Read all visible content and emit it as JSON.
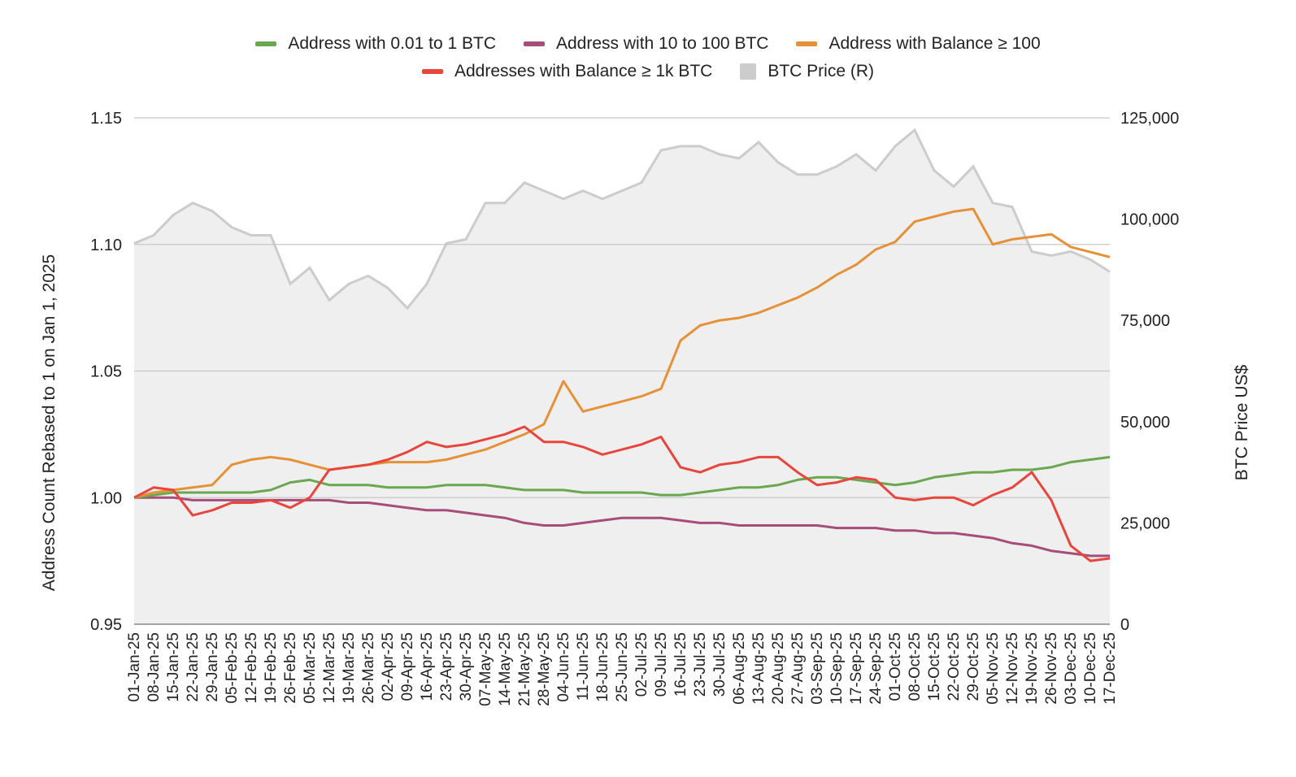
{
  "chart_data": {
    "type": "line",
    "legend_position": "top-center",
    "grid": true,
    "y_left": {
      "label": "Address Count Rebased to 1 on Jan 1, 2025",
      "ylim": [
        0.95,
        1.15
      ],
      "ticks": [
        "0.95",
        "1.00",
        "1.05",
        "1.10",
        "1.15"
      ]
    },
    "y_right": {
      "label": "BTC Price US$",
      "ylim": [
        0,
        125000
      ],
      "ticks": [
        "0",
        "25,000",
        "50,000",
        "75,000",
        "100,000",
        "125,000"
      ]
    },
    "x_ticks": [
      "01-Jan-25",
      "08-Jan-25",
      "15-Jan-25",
      "22-Jan-25",
      "29-Jan-25",
      "05-Feb-25",
      "12-Feb-25",
      "19-Feb-25",
      "26-Feb-25",
      "05-Mar-25",
      "12-Mar-25",
      "19-Mar-25",
      "26-Mar-25",
      "02-Apr-25",
      "09-Apr-25",
      "16-Apr-25",
      "23-Apr-25",
      "30-Apr-25",
      "07-May-25",
      "14-May-25",
      "21-May-25",
      "28-May-25",
      "04-Jun-25",
      "11-Jun-25",
      "18-Jun-25",
      "25-Jun-25",
      "02-Jul-25",
      "09-Jul-25",
      "16-Jul-25",
      "23-Jul-25",
      "30-Jul-25",
      "06-Aug-25",
      "13-Aug-25",
      "20-Aug-25",
      "27-Aug-25",
      "03-Sep-25",
      "10-Sep-25",
      "17-Sep-25",
      "24-Sep-25",
      "01-Oct-25",
      "08-Oct-25",
      "15-Oct-25",
      "22-Oct-25",
      "29-Oct-25",
      "05-Nov-25",
      "12-Nov-25",
      "19-Nov-25",
      "26-Nov-25",
      "03-Dec-25",
      "10-Dec-25",
      "17-Dec-25"
    ],
    "series": [
      {
        "name": "Address with 0.01 to 1 BTC",
        "color": "#6aa84f",
        "axis": "left",
        "values": [
          1.0,
          1.001,
          1.002,
          1.002,
          1.002,
          1.002,
          1.002,
          1.003,
          1.006,
          1.007,
          1.005,
          1.005,
          1.005,
          1.004,
          1.004,
          1.004,
          1.005,
          1.005,
          1.005,
          1.004,
          1.003,
          1.003,
          1.003,
          1.002,
          1.002,
          1.002,
          1.002,
          1.001,
          1.001,
          1.002,
          1.003,
          1.004,
          1.004,
          1.005,
          1.007,
          1.008,
          1.008,
          1.007,
          1.006,
          1.005,
          1.006,
          1.008,
          1.009,
          1.01,
          1.01,
          1.011,
          1.011,
          1.012,
          1.014,
          1.015,
          1.016
        ]
      },
      {
        "name": "Address with 10 to 100 BTC",
        "color": "#a64d79",
        "axis": "left",
        "values": [
          1.0,
          1.0,
          1.0,
          0.999,
          0.999,
          0.999,
          0.999,
          0.999,
          0.999,
          0.999,
          0.999,
          0.998,
          0.998,
          0.997,
          0.996,
          0.995,
          0.995,
          0.994,
          0.993,
          0.992,
          0.99,
          0.989,
          0.989,
          0.99,
          0.991,
          0.992,
          0.992,
          0.992,
          0.991,
          0.99,
          0.99,
          0.989,
          0.989,
          0.989,
          0.989,
          0.989,
          0.988,
          0.988,
          0.988,
          0.987,
          0.987,
          0.986,
          0.986,
          0.985,
          0.984,
          0.982,
          0.981,
          0.979,
          0.978,
          0.977,
          0.977
        ]
      },
      {
        "name": "Address with Balance ≥ 100",
        "color": "#e69138",
        "axis": "left",
        "values": [
          1.0,
          1.002,
          1.003,
          1.004,
          1.005,
          1.013,
          1.015,
          1.016,
          1.015,
          1.013,
          1.011,
          1.012,
          1.013,
          1.014,
          1.014,
          1.014,
          1.015,
          1.017,
          1.019,
          1.022,
          1.025,
          1.029,
          1.046,
          1.034,
          1.036,
          1.038,
          1.04,
          1.043,
          1.062,
          1.068,
          1.07,
          1.071,
          1.073,
          1.076,
          1.079,
          1.083,
          1.088,
          1.092,
          1.098,
          1.101,
          1.109,
          1.111,
          1.113,
          1.114,
          1.1,
          1.102,
          1.103,
          1.104,
          1.099,
          1.097,
          1.095
        ]
      },
      {
        "name": "Addresses with Balance ≥ 1k BTC",
        "color": "#e8453c",
        "axis": "left",
        "values": [
          1.0,
          1.004,
          1.003,
          0.993,
          0.995,
          0.998,
          0.998,
          0.999,
          0.996,
          1.0,
          1.011,
          1.012,
          1.013,
          1.015,
          1.018,
          1.022,
          1.02,
          1.021,
          1.023,
          1.025,
          1.028,
          1.022,
          1.022,
          1.02,
          1.017,
          1.019,
          1.021,
          1.024,
          1.012,
          1.01,
          1.013,
          1.014,
          1.016,
          1.016,
          1.01,
          1.005,
          1.006,
          1.008,
          1.007,
          1.0,
          0.999,
          1.0,
          1.0,
          0.997,
          1.001,
          1.004,
          1.01,
          0.999,
          0.981,
          0.975,
          0.976
        ]
      },
      {
        "name": "BTC Price (R)",
        "color": "#cccccc",
        "axis": "right",
        "style": "area",
        "values": [
          94000,
          96000,
          101000,
          104000,
          102000,
          98000,
          96000,
          96000,
          84000,
          88000,
          80000,
          84000,
          86000,
          83000,
          78000,
          84000,
          94000,
          95000,
          104000,
          104000,
          109000,
          107000,
          105000,
          107000,
          105000,
          107000,
          109000,
          117000,
          118000,
          118000,
          116000,
          115000,
          119000,
          114000,
          111000,
          111000,
          113000,
          116000,
          112000,
          118000,
          122000,
          112000,
          108000,
          113000,
          104000,
          103000,
          92000,
          91000,
          92000,
          90000,
          87000
        ]
      }
    ]
  }
}
